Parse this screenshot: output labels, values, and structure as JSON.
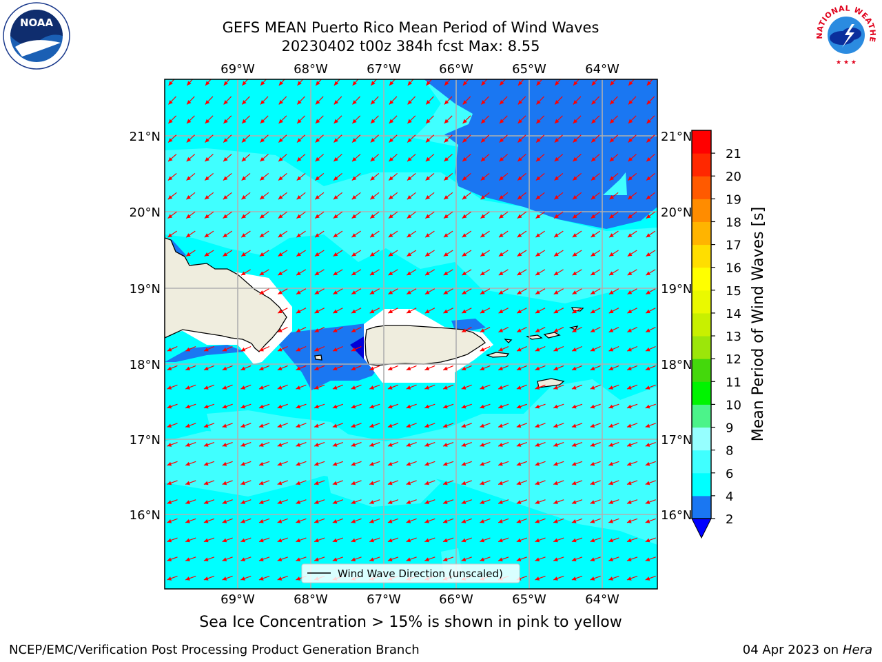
{
  "header": {
    "title_line1": "GEFS MEAN Puerto Rico Mean Period of Wind Waves",
    "title_line2": "20230402 t00z 384h fcst   Max: 8.55"
  },
  "logos": {
    "noaa": {
      "text": "NOAA",
      "icon": "noaa-logo-icon"
    },
    "nws": {
      "text": "NATIONAL WEATHER SERVICE",
      "icon": "nws-logo-icon"
    }
  },
  "map": {
    "lon_labels": [
      "69°W",
      "68°W",
      "67°W",
      "66°W",
      "65°W",
      "64°W"
    ],
    "lat_labels": [
      "21°N",
      "20°N",
      "19°N",
      "18°N",
      "17°N",
      "16°N"
    ],
    "legend_label": "Wind Wave Direction (unscaled)",
    "arrow_color": "#ff0000",
    "land_color": "#efedde",
    "colors": {
      "band_4_6": "#00ffff",
      "band_6_8": "#40ffff",
      "band_2_4": "#1a77f2",
      "below_2": "#0000d8"
    }
  },
  "colorbar": {
    "label": "Mean Period of Wind Waves [s]",
    "ticks": [
      "2",
      "4",
      "6",
      "8",
      "9",
      "10",
      "11",
      "12",
      "13",
      "14",
      "15",
      "16",
      "17",
      "18",
      "19",
      "20",
      "21"
    ],
    "bins": [
      {
        "color": "#1a77f2"
      },
      {
        "color": "#00ffff"
      },
      {
        "color": "#40ffff"
      },
      {
        "color": "#96ffff"
      },
      {
        "color": "#4cf38a"
      },
      {
        "color": "#00f400"
      },
      {
        "color": "#44d80c"
      },
      {
        "color": "#9ce60a"
      },
      {
        "color": "#c8f000"
      },
      {
        "color": "#eaf900"
      },
      {
        "color": "#ffff00"
      },
      {
        "color": "#ffde00"
      },
      {
        "color": "#ffb400"
      },
      {
        "color": "#ff8c00"
      },
      {
        "color": "#ff5a00"
      },
      {
        "color": "#ff2800"
      },
      {
        "color": "#ff0000"
      }
    ],
    "extend_color": "#0000ff"
  },
  "note": "Sea Ice Concentration > 15% is shown in pink to yellow",
  "footer": {
    "left": "NCEP/EMC/Verification Post Processing Product Generation Branch",
    "right_date": "04 Apr 2023 on ",
    "right_host": "Hera"
  }
}
